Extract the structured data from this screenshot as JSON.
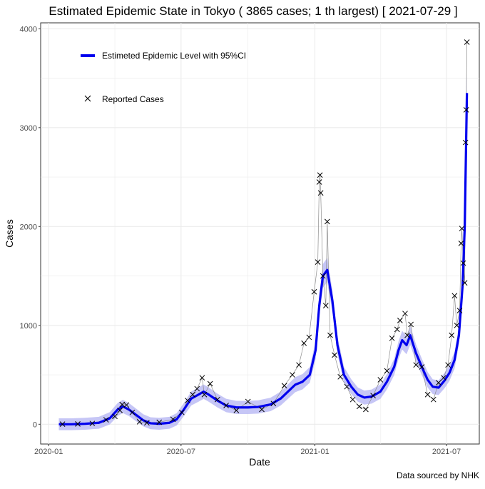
{
  "chart_data": {
    "type": "line",
    "title": "Estimated Epidemic State in Tokyo  ( 3865 cases; 1 th largest) [ 2021-07-29 ]",
    "xlabel": "Date",
    "ylabel": "Cases",
    "caption": "Data sourced by NHK",
    "x_range": [
      "2019-12-21",
      "2021-08-15"
    ],
    "ylim": [
      -200,
      4060
    ],
    "x_ticks": [
      {
        "date": "2020-01-01",
        "label": "2020-01"
      },
      {
        "date": "2020-07-01",
        "label": "2020-07"
      },
      {
        "date": "2021-01-01",
        "label": "2021-01"
      },
      {
        "date": "2021-07-01",
        "label": "2021-07"
      }
    ],
    "y_ticks": [
      0,
      1000,
      2000,
      3000,
      4000
    ],
    "grid": true,
    "legend": [
      {
        "label": "Estimeted Epidemic Level with 95%CI",
        "symbol": "line",
        "color": "#0000ee"
      },
      {
        "label": "Reported Cases",
        "symbol": "cross",
        "color": "#000000"
      }
    ],
    "colors": {
      "level": "#0000ee",
      "ci_band": "#b8b8f4",
      "reported": "#000000",
      "connector": "#8c8c8c",
      "grid": "#ebebeb"
    },
    "series": [
      {
        "name": "Estimeted Epidemic Level",
        "dates": [
          "2020-01-15",
          "2020-02-01",
          "2020-02-20",
          "2020-03-10",
          "2020-03-25",
          "2020-04-05",
          "2020-04-12",
          "2020-04-20",
          "2020-05-01",
          "2020-05-10",
          "2020-05-20",
          "2020-06-01",
          "2020-06-15",
          "2020-06-25",
          "2020-07-05",
          "2020-07-15",
          "2020-07-25",
          "2020-08-01",
          "2020-08-08",
          "2020-08-20",
          "2020-09-01",
          "2020-09-15",
          "2020-10-01",
          "2020-10-15",
          "2020-11-01",
          "2020-11-15",
          "2020-11-25",
          "2020-12-05",
          "2020-12-15",
          "2020-12-25",
          "2021-01-02",
          "2021-01-07",
          "2021-01-12",
          "2021-01-18",
          "2021-01-25",
          "2021-02-01",
          "2021-02-10",
          "2021-02-20",
          "2021-03-01",
          "2021-03-10",
          "2021-03-20",
          "2021-04-01",
          "2021-04-10",
          "2021-04-20",
          "2021-04-26",
          "2021-05-01",
          "2021-05-07",
          "2021-05-12",
          "2021-05-20",
          "2021-05-28",
          "2021-06-05",
          "2021-06-12",
          "2021-06-20",
          "2021-06-28",
          "2021-07-05",
          "2021-07-12",
          "2021-07-18",
          "2021-07-23",
          "2021-07-26",
          "2021-07-29"
        ],
        "values": [
          0,
          0,
          5,
          15,
          60,
          150,
          180,
          150,
          90,
          40,
          10,
          5,
          15,
          50,
          150,
          260,
          300,
          330,
          300,
          240,
          190,
          170,
          170,
          175,
          200,
          260,
          330,
          400,
          430,
          500,
          750,
          1200,
          1500,
          1560,
          1250,
          800,
          500,
          380,
          300,
          270,
          280,
          330,
          430,
          580,
          750,
          850,
          800,
          900,
          720,
          580,
          450,
          380,
          370,
          440,
          520,
          650,
          900,
          1400,
          2000,
          3350
        ]
      }
    ],
    "reported_cases": {
      "dates": [
        "2020-01-20",
        "2020-02-10",
        "2020-03-01",
        "2020-03-20",
        "2020-04-01",
        "2020-04-08",
        "2020-04-11",
        "2020-04-17",
        "2020-04-25",
        "2020-05-05",
        "2020-05-15",
        "2020-06-01",
        "2020-06-20",
        "2020-07-02",
        "2020-07-10",
        "2020-07-17",
        "2020-07-23",
        "2020-07-30",
        "2020-08-02",
        "2020-08-10",
        "2020-08-20",
        "2020-09-01",
        "2020-09-15",
        "2020-10-01",
        "2020-10-20",
        "2020-11-05",
        "2020-11-20",
        "2020-12-01",
        "2020-12-10",
        "2020-12-17",
        "2020-12-24",
        "2020-12-31",
        "2021-01-05",
        "2021-01-07",
        "2021-01-08",
        "2021-01-09",
        "2021-01-12",
        "2021-01-16",
        "2021-01-18",
        "2021-01-22",
        "2021-01-28",
        "2021-02-05",
        "2021-02-14",
        "2021-02-22",
        "2021-03-03",
        "2021-03-12",
        "2021-03-22",
        "2021-04-01",
        "2021-04-10",
        "2021-04-17",
        "2021-04-24",
        "2021-04-28",
        "2021-05-05",
        "2021-05-08",
        "2021-05-13",
        "2021-05-20",
        "2021-05-28",
        "2021-06-05",
        "2021-06-13",
        "2021-06-20",
        "2021-06-27",
        "2021-07-03",
        "2021-07-08",
        "2021-07-12",
        "2021-07-15",
        "2021-07-19",
        "2021-07-21",
        "2021-07-22",
        "2021-07-24",
        "2021-07-26",
        "2021-07-27",
        "2021-07-28",
        "2021-07-29"
      ],
      "values": [
        1,
        3,
        8,
        45,
        80,
        140,
        200,
        195,
        120,
        25,
        15,
        20,
        50,
        120,
        240,
        300,
        360,
        470,
        300,
        410,
        250,
        190,
        140,
        230,
        150,
        210,
        390,
        500,
        600,
        820,
        880,
        1340,
        1640,
        2450,
        2520,
        2340,
        1500,
        1200,
        2050,
        900,
        700,
        480,
        380,
        250,
        180,
        150,
        290,
        450,
        540,
        870,
        960,
        1050,
        1120,
        900,
        1010,
        600,
        580,
        300,
        250,
        420,
        470,
        600,
        900,
        1300,
        1000,
        1150,
        1830,
        1980,
        1630,
        1430,
        2850,
        3180,
        3865
      ]
    }
  }
}
